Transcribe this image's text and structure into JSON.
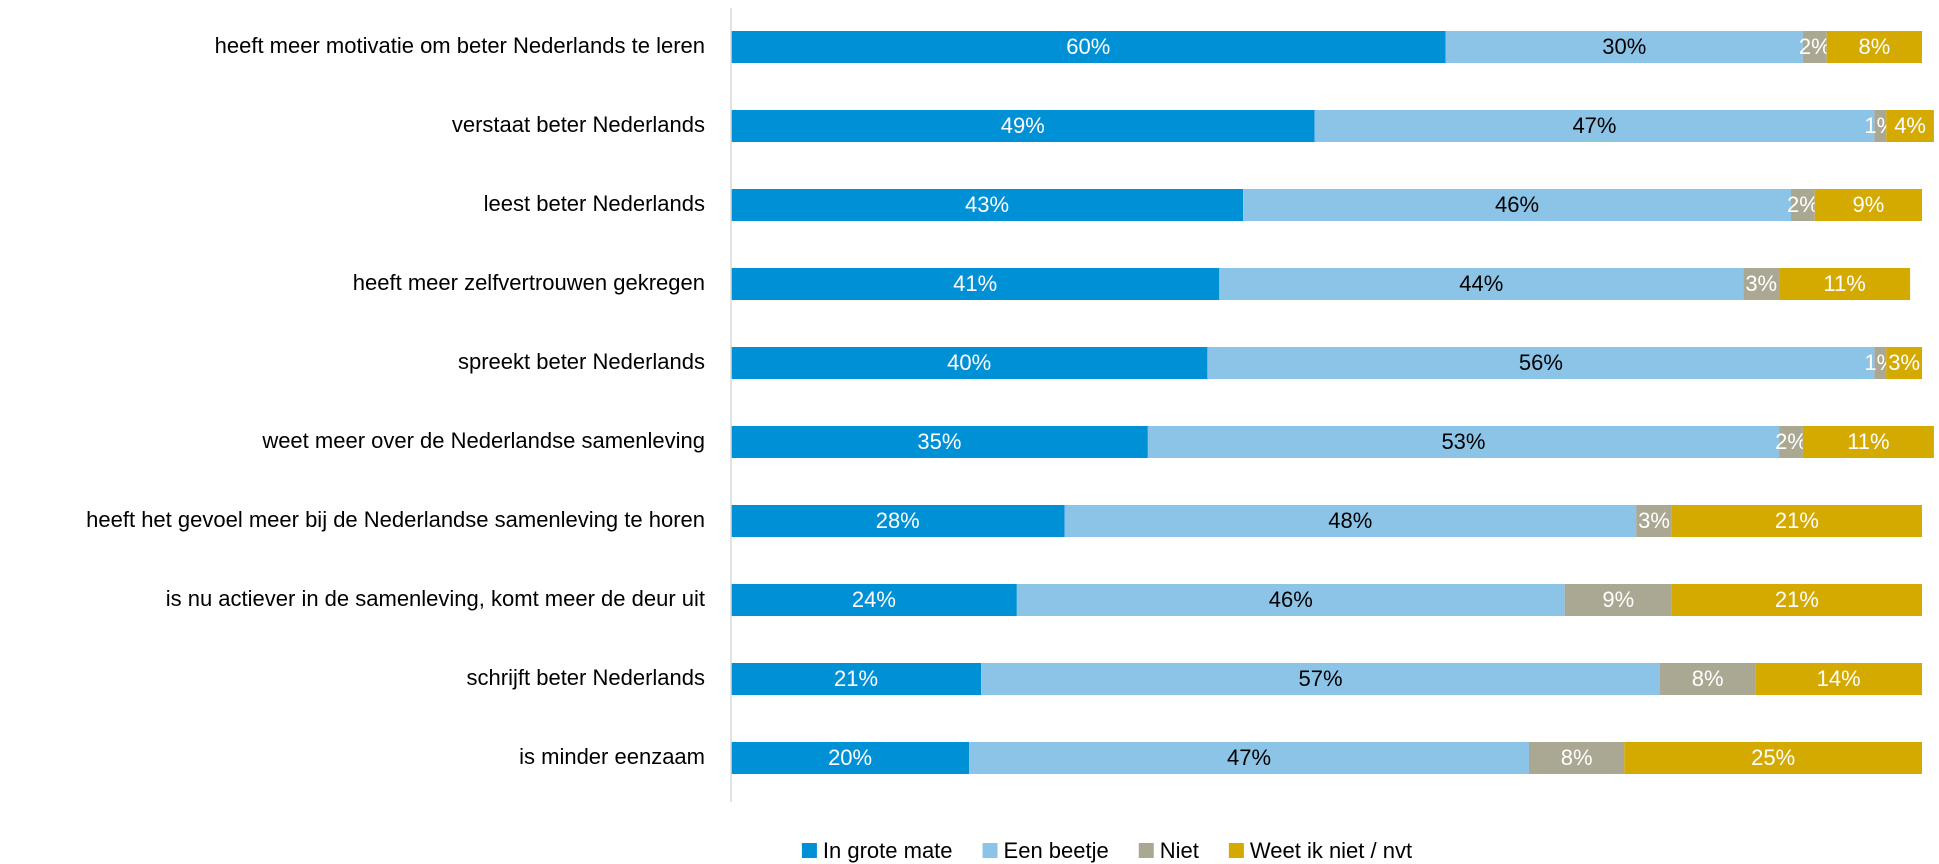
{
  "chart_data": {
    "type": "stacked_barh",
    "categories": [
      "heeft meer motivatie om beter Nederlands te leren",
      "verstaat beter Nederlands",
      "leest beter Nederlands",
      "heeft meer zelfvertrouwen gekregen",
      "spreekt beter Nederlands",
      "weet meer over de Nederlandse samenleving",
      "heeft het gevoel meer bij de Nederlandse samenleving te horen",
      "is nu actiever in de samenleving, komt meer de deur uit",
      "schrijft beter Nederlands",
      "is minder eenzaam"
    ],
    "series": [
      {
        "name": "In grote mate",
        "color": "#0090d6",
        "label_color": "#ffffff",
        "values": [
          60,
          49,
          43,
          41,
          40,
          35,
          28,
          24,
          21,
          20
        ],
        "value_labels": [
          "60%",
          "49%",
          "43%",
          "41%",
          "40%",
          "35%",
          "28%",
          "24%",
          "21%",
          "20%"
        ]
      },
      {
        "name": "Een beetje",
        "color": "#8cc4e8",
        "label_color": "#000000",
        "values": [
          30,
          47,
          46,
          44,
          56,
          53,
          48,
          46,
          57,
          47
        ],
        "value_labels": [
          "30%",
          "47%",
          "46%",
          "44%",
          "56%",
          "53%",
          "48%",
          "46%",
          "57%",
          "47%"
        ]
      },
      {
        "name": "Niet",
        "color": "#aaa892",
        "label_color": "#ffffff",
        "values": [
          2,
          1,
          2,
          3,
          1,
          2,
          3,
          9,
          8,
          8
        ],
        "value_labels": [
          "2%",
          "1%",
          "2%",
          "3%",
          "1%",
          "2%",
          "3%",
          "9%",
          "8%",
          "8%"
        ]
      },
      {
        "name": "Weet ik niet / nvt",
        "color": "#d4a900",
        "label_color": "#ffffff",
        "values": [
          8,
          4,
          9,
          11,
          3,
          11,
          21,
          21,
          14,
          25
        ],
        "value_labels": [
          "8%",
          "4%",
          "9%",
          "11%",
          "3%",
          "11%",
          "21%",
          "21%",
          "14%",
          "25%"
        ]
      }
    ],
    "xlim": [
      0,
      100
    ],
    "legend": "bottom"
  }
}
